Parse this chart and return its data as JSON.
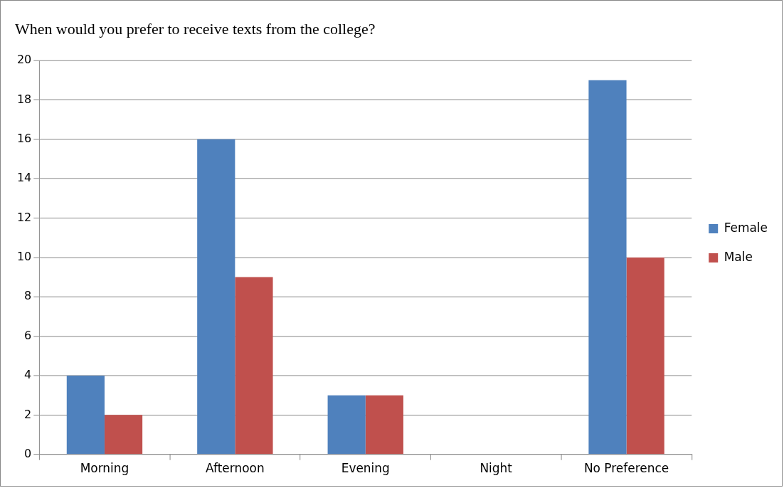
{
  "chart_data": {
    "type": "bar",
    "title": "When would you prefer to receive texts from the college?",
    "categories": [
      "Morning",
      "Afternoon",
      "Evening",
      "Night",
      "No Preference"
    ],
    "series": [
      {
        "name": "Female",
        "color": "#4f81bd",
        "values": [
          4,
          16,
          3,
          0,
          19
        ]
      },
      {
        "name": "Male",
        "color": "#c0504d",
        "values": [
          2,
          9,
          3,
          0,
          10
        ]
      }
    ],
    "ylim": [
      0,
      20
    ],
    "yticks": [
      0,
      2,
      4,
      6,
      8,
      10,
      12,
      14,
      16,
      18,
      20
    ],
    "grid": "y",
    "legend": "right"
  }
}
